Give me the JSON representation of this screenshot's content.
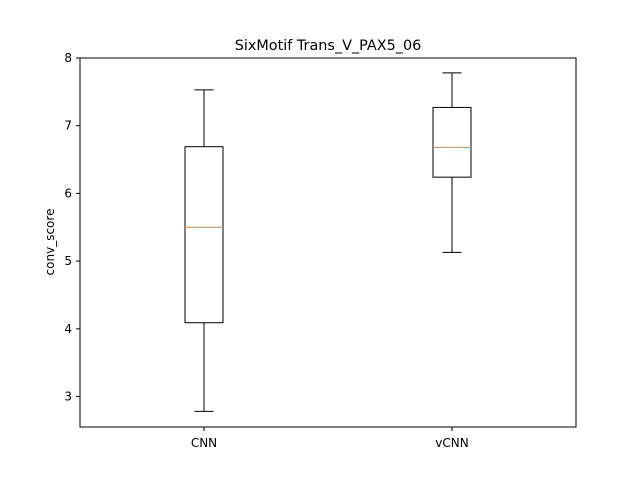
{
  "chart_data": {
    "type": "box",
    "title": "SixMotif Trans_V_PAX5_06",
    "xlabel": "",
    "ylabel": "conv_score",
    "ylim": [
      2.55,
      8.0
    ],
    "yticks": [
      3,
      4,
      5,
      6,
      7,
      8
    ],
    "categories": [
      "CNN",
      "vCNN"
    ],
    "boxes": [
      {
        "label": "CNN",
        "whisker_low": 2.78,
        "q1": 4.09,
        "median": 5.5,
        "q3": 6.69,
        "whisker_high": 7.53
      },
      {
        "label": "vCNN",
        "whisker_low": 5.13,
        "q1": 6.24,
        "median": 6.68,
        "q3": 7.27,
        "whisker_high": 7.78
      }
    ],
    "grid": false,
    "colors": {
      "box": "#000000",
      "median": "#ff7f0e"
    }
  }
}
